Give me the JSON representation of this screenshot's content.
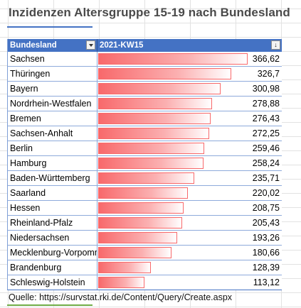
{
  "title": "Inzidenzen Altersgruppe 15-19 nach Bundesland",
  "table": {
    "columns": [
      "Bundesland",
      "2021-KW15"
    ],
    "sort_indicator": "↓",
    "rows": [
      {
        "name": "Sachsen",
        "value": 366.62,
        "display": "366,62"
      },
      {
        "name": "Thüringen",
        "value": 326.7,
        "display": "326,7"
      },
      {
        "name": "Bayern",
        "value": 300.98,
        "display": "300,98"
      },
      {
        "name": "Nordrhein-Westfalen",
        "value": 278.88,
        "display": "278,88"
      },
      {
        "name": "Bremen",
        "value": 276.43,
        "display": "276,43"
      },
      {
        "name": "Sachsen-Anhalt",
        "value": 272.25,
        "display": "272,25"
      },
      {
        "name": "Berlin",
        "value": 259.46,
        "display": "259,46"
      },
      {
        "name": "Hamburg",
        "value": 258.24,
        "display": "258,24"
      },
      {
        "name": "Baden-Württemberg",
        "value": 235.71,
        "display": "235,71"
      },
      {
        "name": "Saarland",
        "value": 220.02,
        "display": "220,02"
      },
      {
        "name": "Hessen",
        "value": 208.75,
        "display": "208,75"
      },
      {
        "name": "Rheinland-Pfalz",
        "value": 205.43,
        "display": "205,43"
      },
      {
        "name": "Niedersachsen",
        "value": 193.26,
        "display": "193,26"
      },
      {
        "name": "Mecklenburg-Vorpommern",
        "value": 180.66,
        "display": "180,66"
      },
      {
        "name": "Brandenburg",
        "value": 128.39,
        "display": "128,39"
      },
      {
        "name": "Schleswig-Holstein",
        "value": 113.12,
        "display": "113,12"
      }
    ]
  },
  "source": "Quelle: https://survstat.rki.de/Content/Query/Create.aspx",
  "colors": {
    "header_bg": "#4472c4",
    "bar": "#f8696b",
    "title_accent": "#4472c4",
    "source_accent": "#70ad47"
  },
  "icons": [
    "filter-dropdown-icon",
    "sort-descending-icon"
  ]
}
